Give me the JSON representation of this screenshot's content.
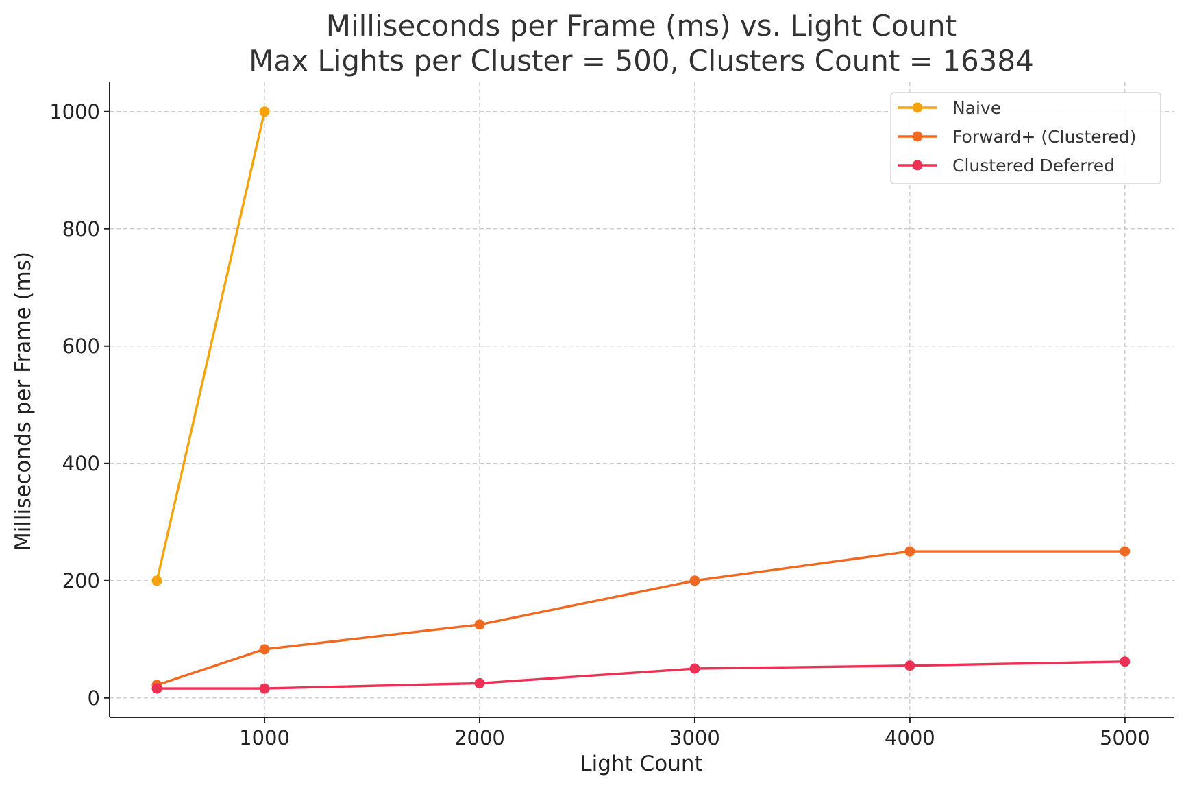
{
  "chart_data": {
    "type": "line",
    "title": "Milliseconds per Frame (ms) vs. Light Count",
    "subtitle": "Max Lights per Cluster = 500, Clusters Count = 16384",
    "xlabel": "Light Count",
    "ylabel": "Milliseconds per Frame (ms)",
    "xlim": [
      280,
      5230
    ],
    "ylim": [
      -33,
      1050
    ],
    "x_ticks": [
      1000,
      2000,
      3000,
      4000,
      5000
    ],
    "y_ticks": [
      0,
      200,
      400,
      600,
      800,
      1000
    ],
    "grid": true,
    "legend_position": "top-right",
    "series": [
      {
        "name": "Naive",
        "color": "#f5a30b",
        "x": [
          500,
          1000
        ],
        "y": [
          200,
          1000
        ]
      },
      {
        "name": "Forward+ (Clustered)",
        "color": "#ee6a22",
        "x": [
          500,
          1000,
          2000,
          3000,
          4000,
          5000
        ],
        "y": [
          22,
          83,
          125,
          200,
          250,
          250
        ]
      },
      {
        "name": "Clustered Deferred",
        "color": "#ec3155",
        "x": [
          500,
          1000,
          2000,
          3000,
          4000,
          5000
        ],
        "y": [
          16,
          16,
          25,
          50,
          55,
          62
        ]
      }
    ]
  }
}
